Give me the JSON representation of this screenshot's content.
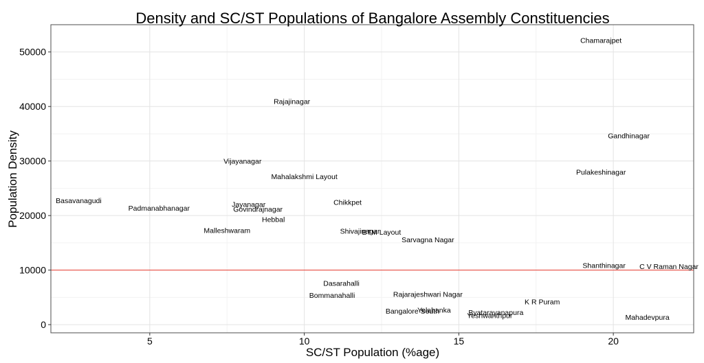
{
  "chart_data": {
    "type": "scatter",
    "title": "Density and SC/ST Populations of Bangalore Assembly Constituencies",
    "xlabel": "SC/ST Population (%age)",
    "ylabel": "Population Density",
    "xlim": [
      1.8,
      22.6
    ],
    "ylim": [
      -1500,
      55000
    ],
    "x_ticks": [
      5,
      10,
      15,
      20
    ],
    "y_ticks": [
      0,
      10000,
      20000,
      30000,
      40000,
      50000
    ],
    "grid": true,
    "marker": "text-label",
    "reference_line": {
      "y": 10000,
      "color": "#e8392f"
    },
    "points": [
      {
        "label": "Chamarajpet",
        "x": 19.6,
        "y": 52200
      },
      {
        "label": "Rajajinagar",
        "x": 9.6,
        "y": 41000
      },
      {
        "label": "Gandhinagar",
        "x": 20.5,
        "y": 34700
      },
      {
        "label": "Vijayanagar",
        "x": 8.0,
        "y": 30000
      },
      {
        "label": "Pulakeshinagar",
        "x": 19.6,
        "y": 28000
      },
      {
        "label": "Mahalakshmi Layout",
        "x": 10.0,
        "y": 27200
      },
      {
        "label": "Basavanagudi",
        "x": 2.7,
        "y": 22800
      },
      {
        "label": "Chikkpet",
        "x": 11.4,
        "y": 22500
      },
      {
        "label": "Jayanagar",
        "x": 8.2,
        "y": 22100
      },
      {
        "label": "Padmanabhanagar",
        "x": 5.3,
        "y": 21400
      },
      {
        "label": "Govindrajnagar",
        "x": 8.5,
        "y": 21200
      },
      {
        "label": "Hebbal",
        "x": 9.0,
        "y": 19300
      },
      {
        "label": "Malleshwaram",
        "x": 7.5,
        "y": 17300
      },
      {
        "label": "Shivajinagar",
        "x": 11.8,
        "y": 17200
      },
      {
        "label": "BTM Layout",
        "x": 12.5,
        "y": 17000
      },
      {
        "label": "Sarvagna Nagar",
        "x": 14.0,
        "y": 15600
      },
      {
        "label": "Shanthinagar",
        "x": 19.7,
        "y": 10900
      },
      {
        "label": "C V Raman Nagar",
        "x": 21.8,
        "y": 10700
      },
      {
        "label": "Dasarahalli",
        "x": 11.2,
        "y": 7600
      },
      {
        "label": "Rajarajeshwari Nagar",
        "x": 14.0,
        "y": 5600
      },
      {
        "label": "Bommanahalli",
        "x": 10.9,
        "y": 5400
      },
      {
        "label": "K R Puram",
        "x": 17.7,
        "y": 4200
      },
      {
        "label": "Bangalore South",
        "x": 13.5,
        "y": 2500
      },
      {
        "label": "Yelahanka",
        "x": 14.2,
        "y": 2700
      },
      {
        "label": "Byatarayanapura",
        "x": 16.2,
        "y": 2300
      },
      {
        "label": "Yeshwanthpur",
        "x": 16.0,
        "y": 1700
      },
      {
        "label": "Mahadevpura",
        "x": 21.1,
        "y": 1400
      }
    ]
  }
}
